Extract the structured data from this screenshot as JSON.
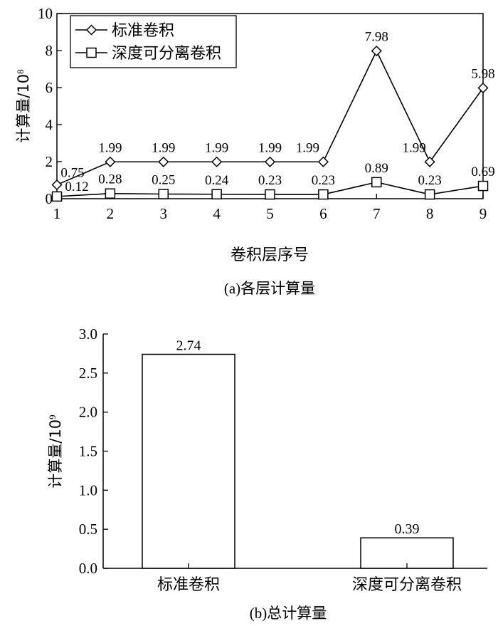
{
  "chart_data": [
    {
      "type": "line",
      "caption": "(a)各层计算量",
      "xlabel": "卷积层序号",
      "ylabel": "计算量/10",
      "ylabel_exponent": "8",
      "x": [
        1,
        2,
        3,
        4,
        5,
        6,
        7,
        8,
        9
      ],
      "xlim": [
        1,
        9
      ],
      "ylim": [
        0,
        10
      ],
      "yticks": [
        0,
        2,
        4,
        6,
        8,
        10
      ],
      "grid": false,
      "legend_position": "top-left",
      "series": [
        {
          "name": "标准卷积",
          "marker": "diamond",
          "values": [
            0.75,
            1.99,
            1.99,
            1.99,
            1.99,
            1.99,
            7.98,
            1.99,
            5.98
          ],
          "labels": [
            "0.75",
            "1.99",
            "1.99",
            "1.99",
            "1.99",
            "1.99",
            "7.98",
            "1.99",
            "5.98"
          ]
        },
        {
          "name": "深度可分离卷积",
          "marker": "square",
          "values": [
            0.12,
            0.28,
            0.25,
            0.24,
            0.23,
            0.23,
            0.89,
            0.23,
            0.69
          ],
          "labels": [
            "0.12",
            "0.28",
            "0.25",
            "0.24",
            "0.23",
            "0.23",
            "0.89",
            "0.23",
            "0.69"
          ]
        }
      ]
    },
    {
      "type": "bar",
      "caption": "(b)总计算量",
      "ylabel": "计算量/10",
      "ylabel_exponent": "9",
      "categories": [
        "标准卷积",
        "深度可分离卷积"
      ],
      "values": [
        2.74,
        0.39
      ],
      "labels": [
        "2.74",
        "0.39"
      ],
      "ylim": [
        0,
        3.0
      ],
      "yticks": [
        "0.0",
        "0.5",
        "1.0",
        "1.5",
        "2.0",
        "2.5",
        "3.0"
      ],
      "grid": false
    }
  ]
}
